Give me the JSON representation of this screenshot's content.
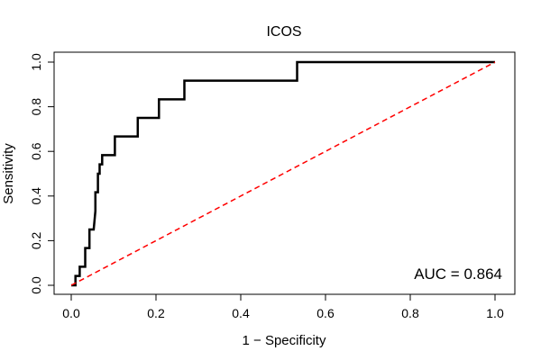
{
  "chart_data": {
    "type": "line",
    "title": "ICOS",
    "xlabel": "1 − Specificity",
    "ylabel": "Sensitivity",
    "xlim": [
      0,
      1
    ],
    "ylim": [
      0,
      1
    ],
    "x_ticks": [
      "0.0",
      "0.2",
      "0.4",
      "0.6",
      "0.8",
      "1.0"
    ],
    "y_ticks": [
      "0.0",
      "0.2",
      "0.4",
      "0.6",
      "0.8",
      "1.0"
    ],
    "grid": false,
    "annotation": "AUC = 0.864",
    "series": [
      {
        "color": "#000000",
        "line_style": "solid",
        "x": [
          0.0,
          0.01,
          0.01,
          0.02,
          0.02,
          0.033,
          0.033,
          0.043,
          0.043,
          0.053,
          0.057,
          0.057,
          0.063,
          0.063,
          0.067,
          0.067,
          0.073,
          0.073,
          0.103,
          0.103,
          0.157,
          0.157,
          0.207,
          0.207,
          0.267,
          0.267,
          0.533,
          0.533,
          1.0
        ],
        "y": [
          0.0,
          0.0,
          0.0417,
          0.0417,
          0.0833,
          0.0833,
          0.1667,
          0.1667,
          0.25,
          0.25,
          0.333,
          0.417,
          0.417,
          0.5,
          0.5,
          0.542,
          0.542,
          0.583,
          0.583,
          0.667,
          0.667,
          0.75,
          0.75,
          0.833,
          0.833,
          0.917,
          0.917,
          1.0,
          1.0
        ]
      },
      {
        "color": "#ff0000",
        "line_style": "dashed",
        "x": [
          0,
          1
        ],
        "y": [
          0,
          1
        ]
      }
    ]
  }
}
